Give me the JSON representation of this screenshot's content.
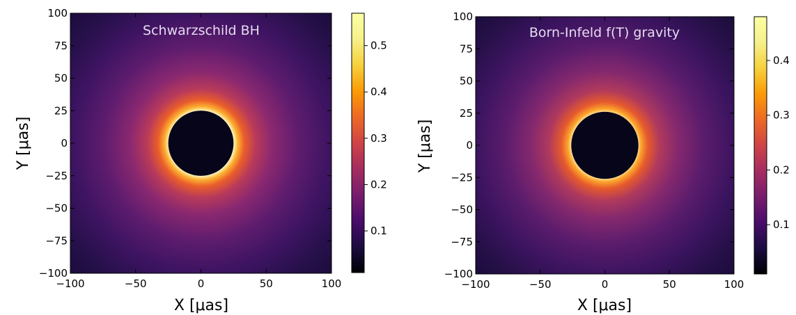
{
  "chart_data": [
    {
      "type": "heatmap",
      "title": "Schwarzschild BH",
      "xlabel": "X [μas]",
      "ylabel": "Y [μas]",
      "xlim": [
        -100,
        100
      ],
      "ylim": [
        -100,
        100
      ],
      "xticks": [
        -100,
        -50,
        0,
        50,
        100
      ],
      "yticks": [
        -100,
        -75,
        -50,
        -25,
        0,
        25,
        50,
        75,
        100
      ],
      "colormap": "inferno",
      "colorbar": {
        "range": [
          0.01,
          0.57
        ],
        "ticks": [
          0.1,
          0.2,
          0.3,
          0.4,
          0.5
        ]
      },
      "shadow_radius": 25,
      "ring_peak": 0.57
    },
    {
      "type": "heatmap",
      "title": "Born-Infeld f(T) gravity",
      "xlabel": "X [μas]",
      "ylabel": "Y [μas]",
      "xlim": [
        -100,
        100
      ],
      "ylim": [
        -100,
        100
      ],
      "xticks": [
        -100,
        -50,
        0,
        50,
        100
      ],
      "yticks": [
        -100,
        -75,
        -50,
        -25,
        0,
        25,
        50,
        75,
        100
      ],
      "colormap": "inferno",
      "colorbar": {
        "range": [
          0.01,
          0.48
        ],
        "ticks": [
          0.1,
          0.2,
          0.3,
          0.4
        ]
      },
      "shadow_radius": 26,
      "ring_peak": 0.48
    }
  ],
  "colors": {
    "title_text": "#e6dcf0",
    "shadow": "#07051a"
  }
}
